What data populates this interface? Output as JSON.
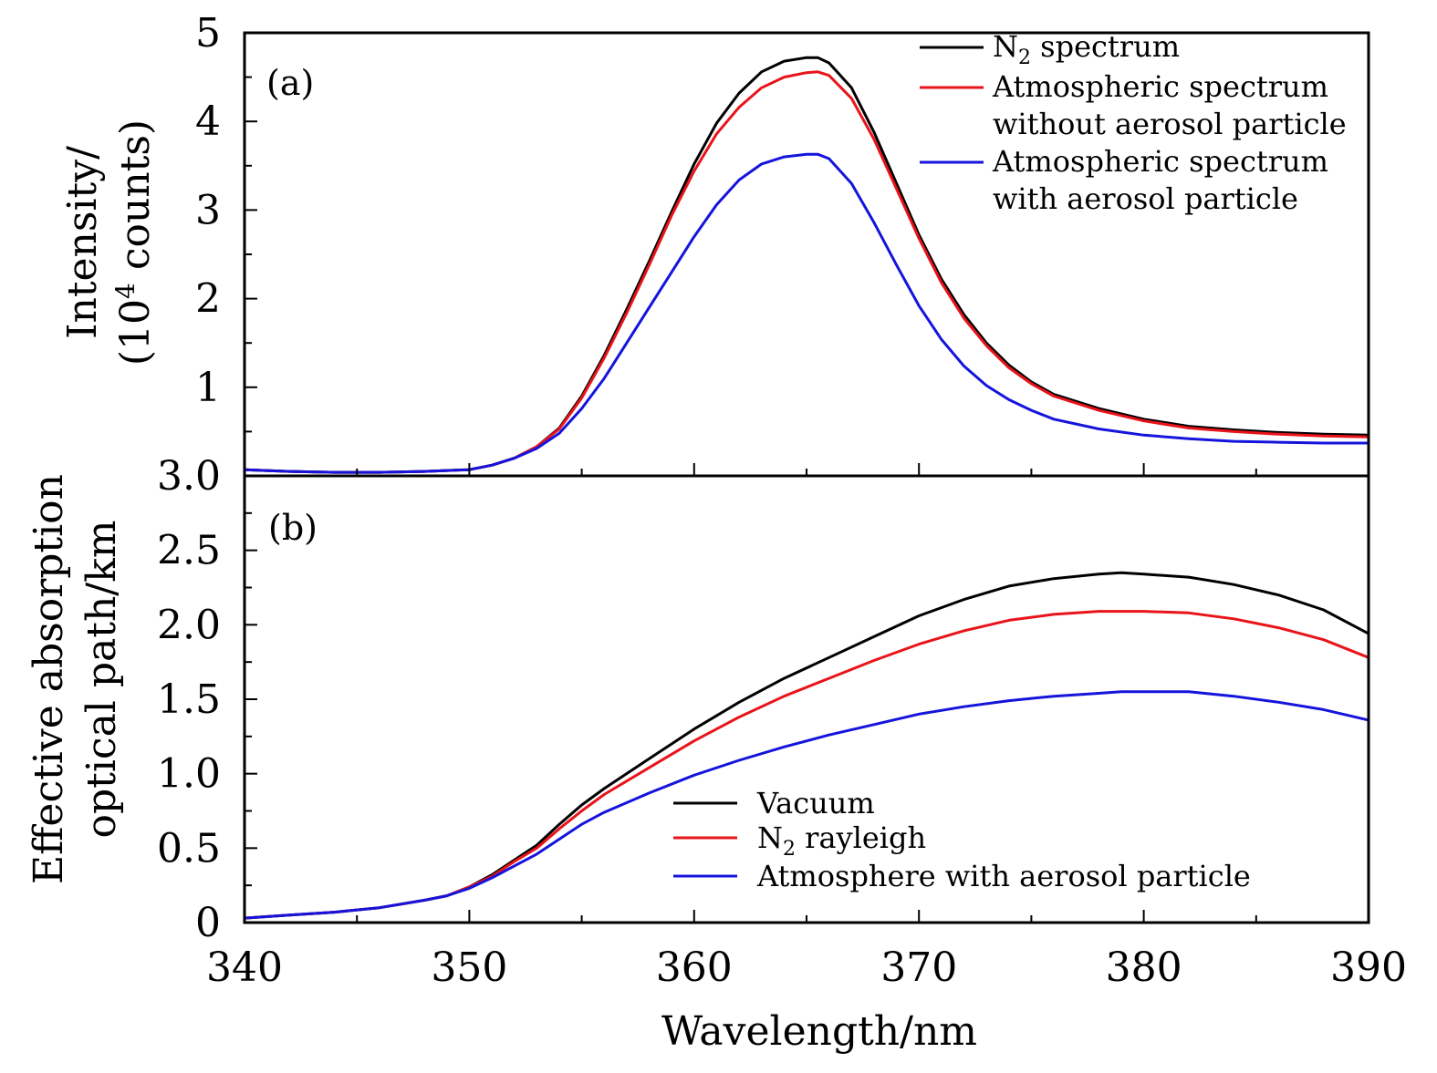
{
  "figure": {
    "xlabel": "Wavelength/nm",
    "x_tick_labels": [
      "340",
      "350",
      "360",
      "370",
      "380",
      "390"
    ],
    "colors": {
      "black": "#000000",
      "red": "#e8141a",
      "blue": "#1414dc"
    }
  },
  "chart_data": [
    {
      "panel": "(a)",
      "type": "line",
      "ylabel_line1": "Intensity/",
      "ylabel_line2_pre": "(10",
      "ylabel_line2_sup": "4",
      "ylabel_line2_post": " counts)",
      "xlim": [
        340,
        390
      ],
      "ylim": [
        0,
        5
      ],
      "y_tick_labels": [
        "1",
        "2",
        "3",
        "4",
        "5"
      ],
      "y_ticks": [
        1,
        2,
        3,
        4,
        5
      ],
      "legend_position": "top-right",
      "legend": [
        {
          "pre": "N",
          "sub": "2",
          "post": " spectrum",
          "line2": "",
          "color": "#000000"
        },
        {
          "pre": "Atmospheric spectrum",
          "sub": "",
          "post": "",
          "line2": "without aerosol particle",
          "color": "#e8141a"
        },
        {
          "pre": "Atmospheric spectrum",
          "sub": "",
          "post": "",
          "line2": "with aerosol particle",
          "color": "#1414dc"
        }
      ],
      "series": [
        {
          "color": "#000000",
          "x": [
            340,
            342,
            344,
            346,
            348,
            350,
            351,
            352,
            353,
            354,
            355,
            356,
            357,
            358,
            359,
            360,
            361,
            362,
            363,
            364,
            365,
            365.5,
            366,
            367,
            368,
            369,
            370,
            371,
            372,
            373,
            374,
            375,
            376,
            378,
            380,
            382,
            384,
            386,
            388,
            390
          ],
          "y": [
            0.07,
            0.05,
            0.04,
            0.04,
            0.05,
            0.07,
            0.12,
            0.2,
            0.33,
            0.54,
            0.9,
            1.36,
            1.88,
            2.42,
            2.98,
            3.52,
            3.98,
            4.32,
            4.56,
            4.68,
            4.72,
            4.72,
            4.66,
            4.38,
            3.88,
            3.3,
            2.72,
            2.22,
            1.82,
            1.5,
            1.25,
            1.06,
            0.92,
            0.76,
            0.64,
            0.56,
            0.52,
            0.49,
            0.47,
            0.46
          ]
        },
        {
          "color": "#e8141a",
          "x": [
            340,
            342,
            344,
            346,
            348,
            350,
            351,
            352,
            353,
            354,
            355,
            356,
            357,
            358,
            359,
            360,
            361,
            362,
            363,
            364,
            365,
            365.5,
            366,
            367,
            368,
            369,
            370,
            371,
            372,
            373,
            374,
            375,
            376,
            378,
            380,
            382,
            384,
            386,
            388,
            390
          ],
          "y": [
            0.07,
            0.05,
            0.04,
            0.04,
            0.05,
            0.07,
            0.12,
            0.2,
            0.33,
            0.53,
            0.88,
            1.33,
            1.84,
            2.38,
            2.94,
            3.44,
            3.86,
            4.16,
            4.38,
            4.5,
            4.55,
            4.56,
            4.52,
            4.26,
            3.8,
            3.24,
            2.68,
            2.18,
            1.78,
            1.47,
            1.22,
            1.04,
            0.9,
            0.74,
            0.62,
            0.54,
            0.5,
            0.47,
            0.45,
            0.44
          ]
        },
        {
          "color": "#1414dc",
          "x": [
            340,
            342,
            344,
            346,
            348,
            350,
            351,
            352,
            353,
            354,
            355,
            356,
            357,
            358,
            359,
            360,
            361,
            362,
            363,
            364,
            365,
            365.5,
            366,
            367,
            368,
            369,
            370,
            371,
            372,
            373,
            374,
            375,
            376,
            378,
            380,
            382,
            384,
            386,
            388,
            390
          ],
          "y": [
            0.07,
            0.05,
            0.04,
            0.04,
            0.05,
            0.07,
            0.12,
            0.2,
            0.31,
            0.48,
            0.76,
            1.1,
            1.5,
            1.9,
            2.3,
            2.7,
            3.06,
            3.34,
            3.52,
            3.6,
            3.63,
            3.63,
            3.58,
            3.3,
            2.86,
            2.38,
            1.92,
            1.54,
            1.24,
            1.02,
            0.86,
            0.74,
            0.64,
            0.53,
            0.46,
            0.42,
            0.39,
            0.38,
            0.37,
            0.37
          ]
        }
      ]
    },
    {
      "panel": "(b)",
      "type": "line",
      "ylabel_line1": "Effective absorption",
      "ylabel_line2": "optical path/km",
      "xlim": [
        340,
        390
      ],
      "ylim": [
        0,
        3.0
      ],
      "y_tick_labels": [
        "0",
        "0.5",
        "1.0",
        "1.5",
        "2.0",
        "2.5",
        "3.0"
      ],
      "y_ticks": [
        0,
        0.5,
        1.0,
        1.5,
        2.0,
        2.5,
        3.0
      ],
      "legend_position": "bottom-right",
      "legend": [
        {
          "pre": "Vacuum",
          "sub": "",
          "post": "",
          "line2": "",
          "color": "#000000"
        },
        {
          "pre": "N",
          "sub": "2",
          "post": " rayleigh",
          "line2": "",
          "color": "#e8141a"
        },
        {
          "pre": "Atmosphere with aerosol particle",
          "sub": "",
          "post": "",
          "line2": "",
          "color": "#1414dc"
        }
      ],
      "series": [
        {
          "color": "#000000",
          "x": [
            340,
            342,
            344,
            346,
            348,
            349,
            350,
            351,
            352,
            353,
            354,
            355,
            356,
            358,
            360,
            362,
            364,
            366,
            368,
            370,
            372,
            374,
            376,
            378,
            379,
            380,
            382,
            384,
            386,
            388,
            390
          ],
          "y": [
            0.03,
            0.05,
            0.07,
            0.1,
            0.15,
            0.18,
            0.24,
            0.32,
            0.42,
            0.52,
            0.66,
            0.79,
            0.9,
            1.1,
            1.3,
            1.48,
            1.64,
            1.78,
            1.92,
            2.06,
            2.17,
            2.26,
            2.31,
            2.34,
            2.35,
            2.34,
            2.32,
            2.27,
            2.2,
            2.1,
            1.94
          ]
        },
        {
          "color": "#e8141a",
          "x": [
            340,
            342,
            344,
            346,
            348,
            349,
            350,
            351,
            352,
            353,
            354,
            355,
            356,
            358,
            360,
            362,
            364,
            366,
            368,
            370,
            372,
            374,
            376,
            378,
            379,
            380,
            382,
            384,
            386,
            388,
            390
          ],
          "y": [
            0.03,
            0.05,
            0.07,
            0.1,
            0.15,
            0.18,
            0.24,
            0.31,
            0.41,
            0.5,
            0.63,
            0.75,
            0.86,
            1.04,
            1.22,
            1.38,
            1.52,
            1.64,
            1.76,
            1.87,
            1.96,
            2.03,
            2.07,
            2.09,
            2.09,
            2.09,
            2.08,
            2.04,
            1.98,
            1.9,
            1.78
          ]
        },
        {
          "color": "#1414dc",
          "x": [
            340,
            342,
            344,
            346,
            348,
            349,
            350,
            351,
            352,
            353,
            354,
            355,
            356,
            358,
            360,
            362,
            364,
            366,
            368,
            370,
            372,
            374,
            376,
            378,
            379,
            380,
            382,
            384,
            386,
            388,
            390
          ],
          "y": [
            0.03,
            0.05,
            0.07,
            0.1,
            0.15,
            0.18,
            0.23,
            0.3,
            0.38,
            0.46,
            0.56,
            0.66,
            0.74,
            0.87,
            0.99,
            1.09,
            1.18,
            1.26,
            1.33,
            1.4,
            1.45,
            1.49,
            1.52,
            1.54,
            1.55,
            1.55,
            1.55,
            1.52,
            1.48,
            1.43,
            1.36
          ]
        }
      ]
    }
  ]
}
